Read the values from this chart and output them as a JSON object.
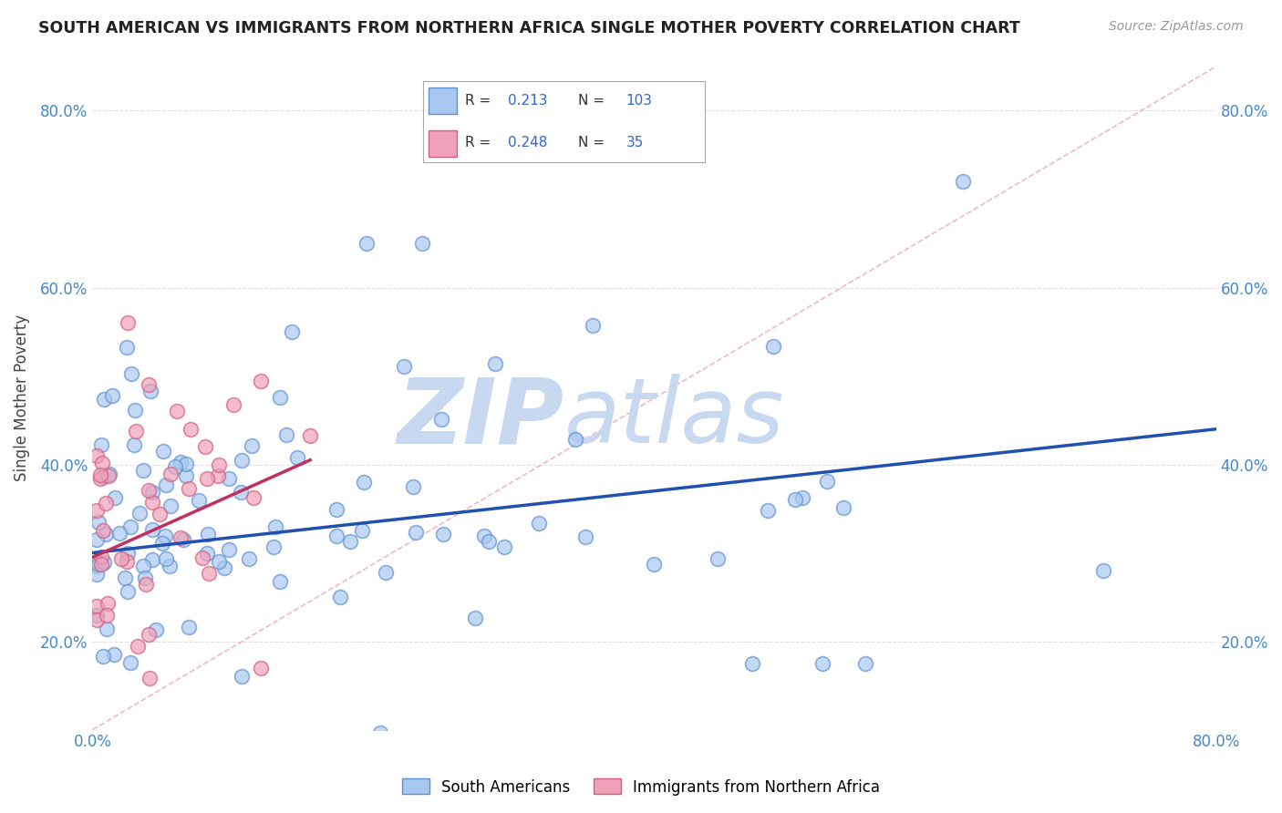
{
  "title": "SOUTH AMERICAN VS IMMIGRANTS FROM NORTHERN AFRICA SINGLE MOTHER POVERTY CORRELATION CHART",
  "source": "Source: ZipAtlas.com",
  "ylabel": "Single Mother Poverty",
  "xlim": [
    0.0,
    0.8
  ],
  "ylim": [
    0.1,
    0.85
  ],
  "xticks": [
    0.0,
    0.2,
    0.4,
    0.6,
    0.8
  ],
  "yticks": [
    0.2,
    0.4,
    0.6,
    0.8
  ],
  "xtick_labels": [
    "0.0%",
    "",
    "",
    "",
    "80.0%"
  ],
  "ytick_labels": [
    "20.0%",
    "40.0%",
    "60.0%",
    "80.0%"
  ],
  "R_blue": 0.213,
  "N_blue": 103,
  "R_pink": 0.248,
  "N_pink": 35,
  "blue_color": "#A8C8F0",
  "pink_color": "#F0A0B8",
  "blue_edge_color": "#6090D0",
  "pink_edge_color": "#D06080",
  "blue_line_color": "#2050B0",
  "pink_line_color": "#C03060",
  "ref_line_color": "#F0B0C0",
  "watermark_zip": "ZIP",
  "watermark_atlas": "atlas",
  "watermark_color": "#C8D8F0",
  "legend_label_blue": "South Americans",
  "legend_label_pink": "Immigrants from Northern Africa",
  "blue_trendline_x": [
    0.0,
    0.8
  ],
  "blue_trendline_y": [
    0.3,
    0.44
  ],
  "pink_trendline_x": [
    0.0,
    0.155
  ],
  "pink_trendline_y": [
    0.295,
    0.405
  ],
  "ref_line_x": [
    0.0,
    0.8
  ],
  "ref_line_y": [
    0.1,
    0.85
  ]
}
